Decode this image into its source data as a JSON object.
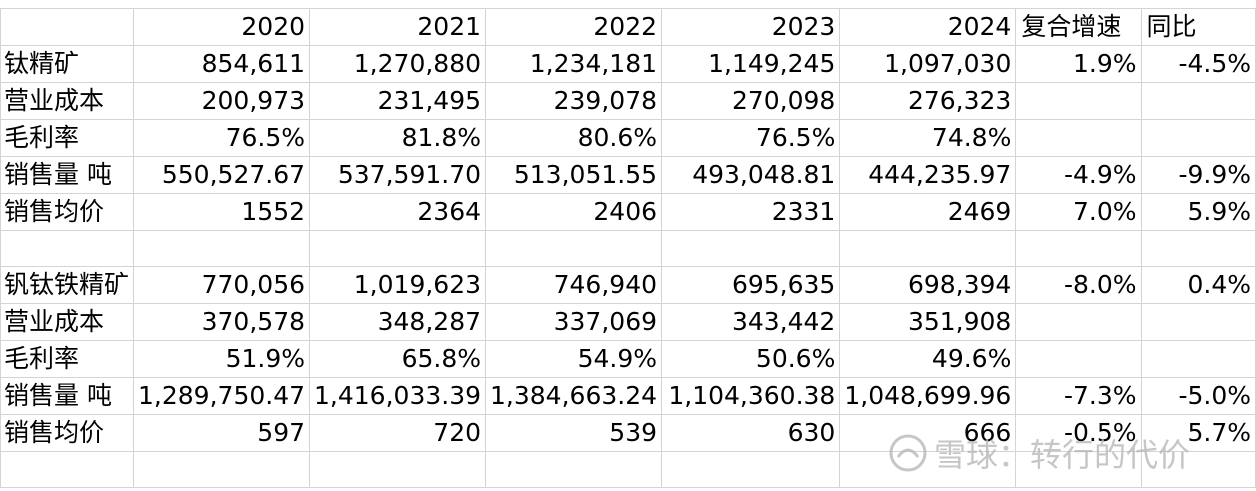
{
  "header": {
    "years": [
      "2020",
      "2021",
      "2022",
      "2023",
      "2024"
    ],
    "cagr": "复合增速",
    "yoy": "同比"
  },
  "rows": [
    {
      "label": "钛精矿",
      "values": [
        "854,611",
        "1,270,880",
        "1,234,181",
        "1,149,245",
        "1,097,030"
      ],
      "cagr": "1.9%",
      "yoy": "-4.5%"
    },
    {
      "label": "营业成本",
      "values": [
        "200,973",
        "231,495",
        "239,078",
        "270,098",
        "276,323"
      ],
      "cagr": "",
      "yoy": ""
    },
    {
      "label": "毛利率",
      "values": [
        "76.5%",
        "81.8%",
        "80.6%",
        "76.5%",
        "74.8%"
      ],
      "cagr": "",
      "yoy": ""
    },
    {
      "label": "销售量 吨",
      "values": [
        "550,527.67",
        "537,591.70",
        "513,051.55",
        "493,048.81",
        "444,235.97"
      ],
      "cagr": "-4.9%",
      "yoy": "-9.9%"
    },
    {
      "label": "销售均价",
      "values": [
        "1552",
        "2364",
        "2406",
        "2331",
        "2469"
      ],
      "cagr": "7.0%",
      "yoy": "5.9%"
    },
    {
      "label": "",
      "values": [
        "",
        "",
        "",
        "",
        ""
      ],
      "cagr": "",
      "yoy": ""
    },
    {
      "label": "钒钛铁精矿",
      "values": [
        "770,056",
        "1,019,623",
        "746,940",
        "695,635",
        "698,394"
      ],
      "cagr": "-8.0%",
      "yoy": "0.4%"
    },
    {
      "label": "营业成本",
      "values": [
        "370,578",
        "348,287",
        "337,069",
        "343,442",
        "351,908"
      ],
      "cagr": "",
      "yoy": ""
    },
    {
      "label": "毛利率",
      "values": [
        "51.9%",
        "65.8%",
        "54.9%",
        "50.6%",
        "49.6%"
      ],
      "cagr": "",
      "yoy": ""
    },
    {
      "label": "销售量 吨",
      "values": [
        "1,289,750.47",
        "1,416,033.39",
        "1,384,663.24",
        "1,104,360.38",
        "1,048,699.96"
      ],
      "cagr": "-7.3%",
      "yoy": "-5.0%"
    },
    {
      "label": "销售均价",
      "values": [
        "597",
        "720",
        "539",
        "630",
        "666"
      ],
      "cagr": "-0.5%",
      "yoy": "5.7%"
    }
  ],
  "watermark": {
    "text": "雪球：转行的代价",
    "icon": "snowball-logo-icon",
    "color": "#b8b8b8"
  }
}
